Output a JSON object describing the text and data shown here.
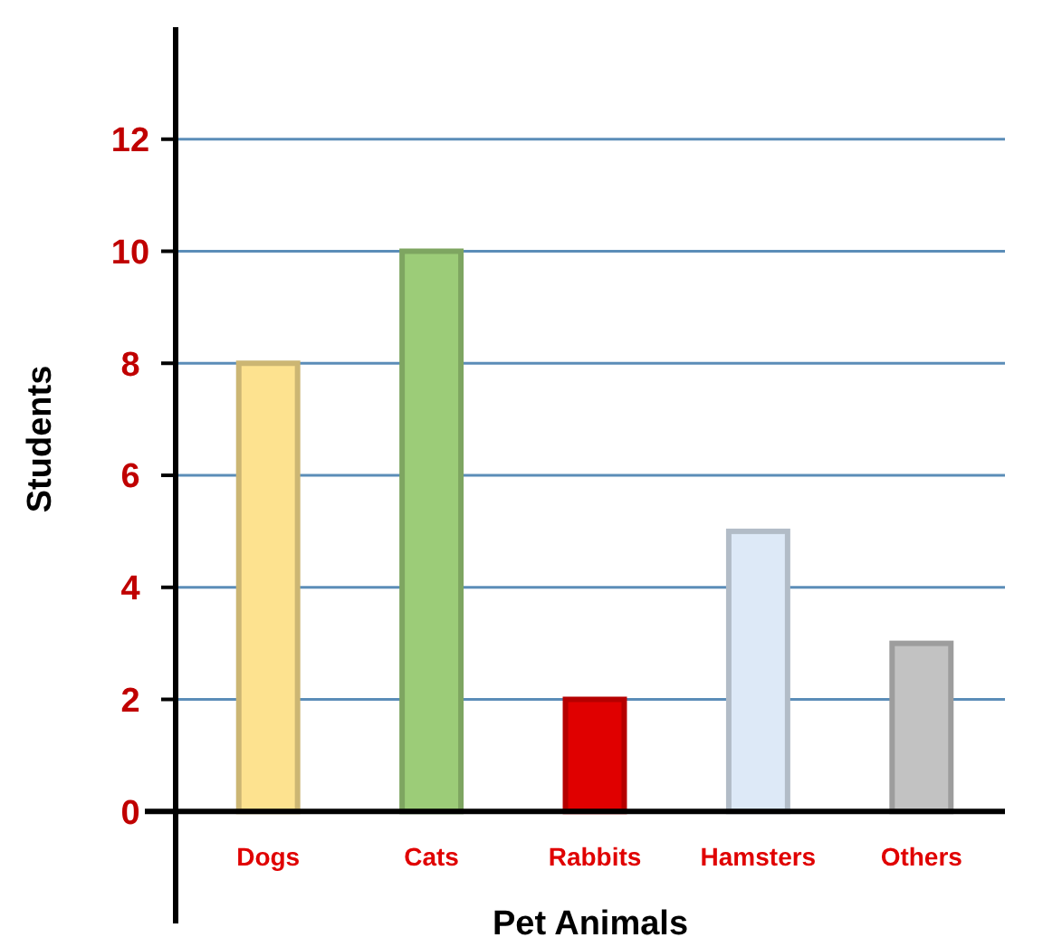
{
  "chart_data": {
    "type": "bar",
    "xlabel": "Pet Animals",
    "ylabel": "Students",
    "categories": [
      "Dogs",
      "Cats",
      "Rabbits",
      "Hamsters",
      "Others"
    ],
    "values": [
      8,
      10,
      2,
      5,
      3
    ],
    "colors": [
      "#fde28f",
      "#9ccc78",
      "#e00000",
      "#dde9f7",
      "#c2c2c2"
    ],
    "ylim": [
      -2,
      14
    ],
    "yticks": [
      0,
      2,
      4,
      6,
      8,
      10,
      12
    ],
    "grid": "y"
  }
}
